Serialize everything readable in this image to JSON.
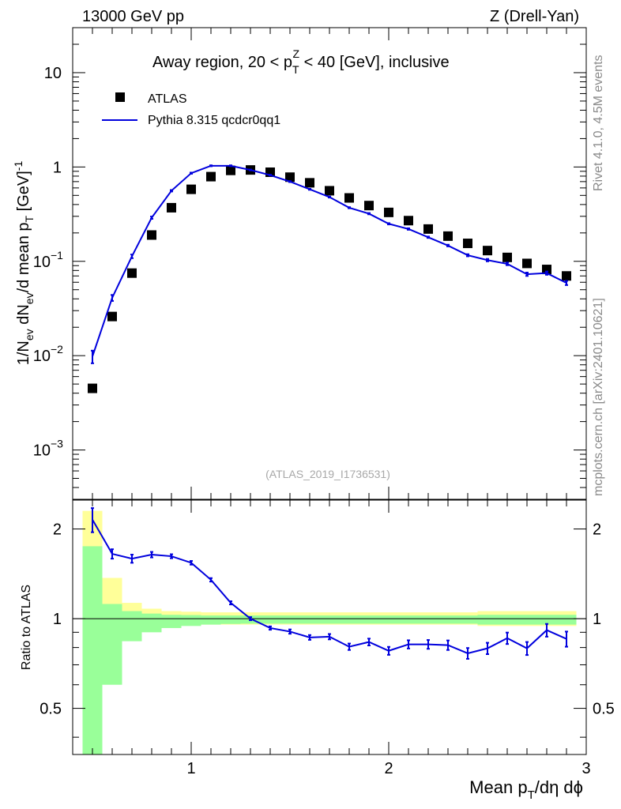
{
  "header": {
    "energy": "13000 GeV pp",
    "process": "Z (Drell-Yan)"
  },
  "side": {
    "rivet": "Rivet 4.1.0,  4.5M events",
    "mcplots": "mcplots.cern.ch [arXiv:2401.10621]"
  },
  "analysis_ref": "(ATLAS_2019_I1736531)",
  "chart_data": [
    {
      "type": "scatter+line",
      "scale": "log",
      "title": "Away region, 20 < p_T^Z < 40 [GeV], inclusive",
      "ylabel": "1/N_ev dN_ev/d mean p_T [GeV]^-1",
      "xlim": [
        0.4,
        3.0
      ],
      "ylim": [
        0.0003,
        30
      ],
      "yticks": [
        {
          "value": 0.001,
          "base": "10",
          "exp": "−3"
        },
        {
          "value": 0.01,
          "base": "10",
          "exp": "−2"
        },
        {
          "value": 0.1,
          "base": "10",
          "exp": "−1"
        },
        {
          "value": 1,
          "label": "1"
        },
        {
          "value": 10,
          "label": "10"
        }
      ],
      "legend": {
        "position": "top-left",
        "data_label": "ATLAS",
        "mc_label": "Pythia 8.315 qcdcr0qq1"
      },
      "series": [
        {
          "name": "ATLAS",
          "marker": "square",
          "color": "#000000",
          "x": [
            0.5,
            0.6,
            0.7,
            0.8,
            0.9,
            1.0,
            1.1,
            1.2,
            1.3,
            1.4,
            1.5,
            1.6,
            1.7,
            1.8,
            1.9,
            2.0,
            2.1,
            2.2,
            2.3,
            2.4,
            2.5,
            2.6,
            2.7,
            2.8,
            2.9
          ],
          "y": [
            0.0045,
            0.026,
            0.075,
            0.19,
            0.37,
            0.58,
            0.79,
            0.92,
            0.93,
            0.88,
            0.78,
            0.68,
            0.56,
            0.47,
            0.39,
            0.33,
            0.27,
            0.22,
            0.185,
            0.155,
            0.13,
            0.11,
            0.095,
            0.082,
            0.07
          ]
        },
        {
          "name": "Pythia 8.315 qcdcr0qq1",
          "marker": "line",
          "color": "#0000dd",
          "x": [
            0.5,
            0.6,
            0.7,
            0.8,
            0.9,
            1.0,
            1.1,
            1.2,
            1.3,
            1.4,
            1.5,
            1.6,
            1.7,
            1.8,
            1.9,
            2.0,
            2.1,
            2.2,
            2.3,
            2.4,
            2.5,
            2.6,
            2.7,
            2.8,
            2.9
          ],
          "y": [
            0.0098,
            0.041,
            0.113,
            0.29,
            0.56,
            0.86,
            1.03,
            1.03,
            0.93,
            0.82,
            0.7,
            0.58,
            0.48,
            0.37,
            0.32,
            0.25,
            0.22,
            0.18,
            0.147,
            0.116,
            0.103,
            0.094,
            0.073,
            0.075,
            0.059
          ],
          "yerr": [
            0.0015,
            0.003,
            0.005,
            0.008,
            0.01,
            0.012,
            0.012,
            0.012,
            0.01,
            0.009,
            0.008,
            0.007,
            0.006,
            0.005,
            0.005,
            0.004,
            0.004,
            0.003,
            0.003,
            0.003,
            0.003,
            0.003,
            0.003,
            0.003,
            0.003
          ]
        }
      ]
    },
    {
      "type": "line",
      "scale": "log",
      "ylabel": "Ratio to ATLAS",
      "xlabel": "Mean p_T/dη dϕ",
      "xlim": [
        0.4,
        3.0
      ],
      "ylim": [
        0.35,
        2.5
      ],
      "xticks": [
        1,
        2,
        3
      ],
      "yticks": [
        {
          "value": 0.5,
          "label": "0.5"
        },
        {
          "value": 1,
          "label": "1"
        },
        {
          "value": 2,
          "label": "2"
        }
      ],
      "reference": 1.0,
      "bands": {
        "edges": [
          0.45,
          0.55,
          0.65,
          0.75,
          0.85,
          0.95,
          1.05,
          1.15,
          1.25,
          1.35,
          1.45,
          1.55,
          1.65,
          1.75,
          1.85,
          1.95,
          2.05,
          2.15,
          2.25,
          2.35,
          2.45,
          2.55,
          2.65,
          2.75,
          2.85,
          2.95
        ],
        "stat_lo": [
          0.35,
          0.6,
          0.84,
          0.9,
          0.93,
          0.945,
          0.955,
          0.96,
          0.962,
          0.962,
          0.962,
          0.962,
          0.962,
          0.962,
          0.962,
          0.962,
          0.962,
          0.962,
          0.962,
          0.962,
          0.955,
          0.955,
          0.955,
          0.955,
          0.955
        ],
        "stat_hi": [
          1.75,
          1.12,
          1.06,
          1.04,
          1.03,
          1.028,
          1.025,
          1.025,
          1.025,
          1.025,
          1.025,
          1.025,
          1.025,
          1.025,
          1.025,
          1.025,
          1.025,
          1.025,
          1.025,
          1.025,
          1.03,
          1.03,
          1.03,
          1.03,
          1.03
        ],
        "syst_lo": [
          0.35,
          0.75,
          0.89,
          0.93,
          0.945,
          0.955,
          0.955,
          0.955,
          0.955,
          0.955,
          0.955,
          0.955,
          0.955,
          0.955,
          0.955,
          0.955,
          0.955,
          0.955,
          0.955,
          0.955,
          0.945,
          0.945,
          0.945,
          0.945,
          0.945
        ],
        "syst_hi": [
          2.3,
          1.37,
          1.13,
          1.08,
          1.06,
          1.055,
          1.05,
          1.05,
          1.05,
          1.05,
          1.05,
          1.05,
          1.05,
          1.05,
          1.05,
          1.05,
          1.05,
          1.05,
          1.05,
          1.05,
          1.06,
          1.06,
          1.06,
          1.06,
          1.06
        ],
        "stat_color": "#99ff99",
        "syst_color": "#ffff99"
      },
      "series": [
        {
          "name": "Pythia 8.315 qcdcr0qq1 / ATLAS",
          "color": "#0000dd",
          "x": [
            0.5,
            0.6,
            0.7,
            0.8,
            0.9,
            1.0,
            1.1,
            1.2,
            1.3,
            1.4,
            1.5,
            1.6,
            1.7,
            1.8,
            1.9,
            2.0,
            2.1,
            2.2,
            2.3,
            2.4,
            2.5,
            2.6,
            2.7,
            2.8,
            2.9
          ],
          "y": [
            2.15,
            1.65,
            1.59,
            1.64,
            1.62,
            1.54,
            1.35,
            1.13,
            1.0,
            0.93,
            0.905,
            0.865,
            0.87,
            0.805,
            0.835,
            0.78,
            0.82,
            0.82,
            0.815,
            0.765,
            0.795,
            0.86,
            0.795,
            0.915,
            0.855
          ],
          "yerr": [
            0.2,
            0.06,
            0.05,
            0.035,
            0.025,
            0.022,
            0.018,
            0.014,
            0.012,
            0.012,
            0.015,
            0.016,
            0.018,
            0.02,
            0.022,
            0.024,
            0.026,
            0.028,
            0.03,
            0.032,
            0.035,
            0.038,
            0.04,
            0.045,
            0.05
          ]
        }
      ]
    }
  ]
}
